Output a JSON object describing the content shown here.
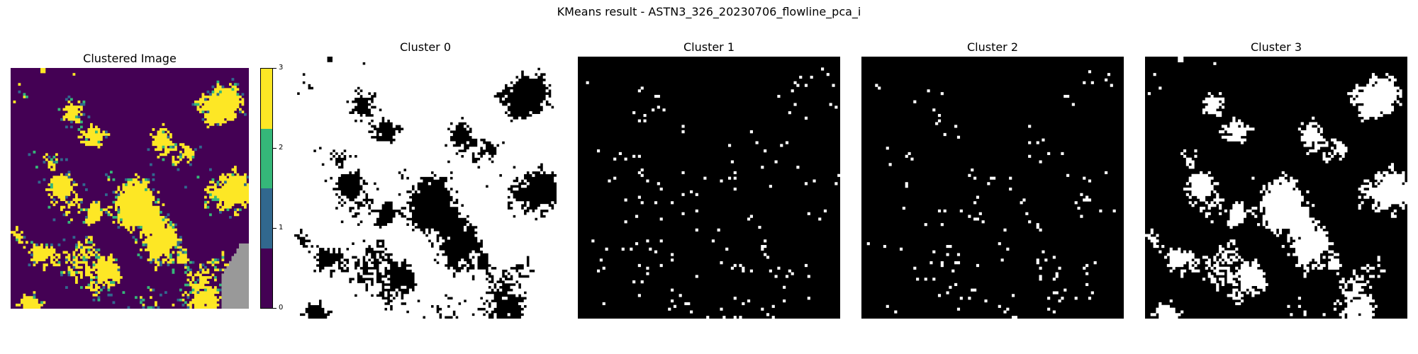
{
  "chart_data": {
    "type": "heatmap",
    "title": "KMeans result - ASTN3_326_20230706_flowline_pca_i",
    "panels": [
      {
        "title": "Clustered Image",
        "kind": "clustered"
      },
      {
        "title": "Cluster 0",
        "kind": "mask",
        "cluster": 0
      },
      {
        "title": "Cluster 1",
        "kind": "mask",
        "cluster": 1
      },
      {
        "title": "Cluster 2",
        "kind": "mask",
        "cluster": 2
      },
      {
        "title": "Cluster 3",
        "kind": "mask",
        "cluster": 3
      }
    ],
    "colorbar": {
      "ticks": [
        "0",
        "1",
        "2",
        "3"
      ],
      "colors": [
        "#440154",
        "#31688e",
        "#35b779",
        "#fde725"
      ]
    },
    "nodata_color": "#999999",
    "mask_on_color": "#ffffff",
    "mask_off_color": "#000000"
  }
}
